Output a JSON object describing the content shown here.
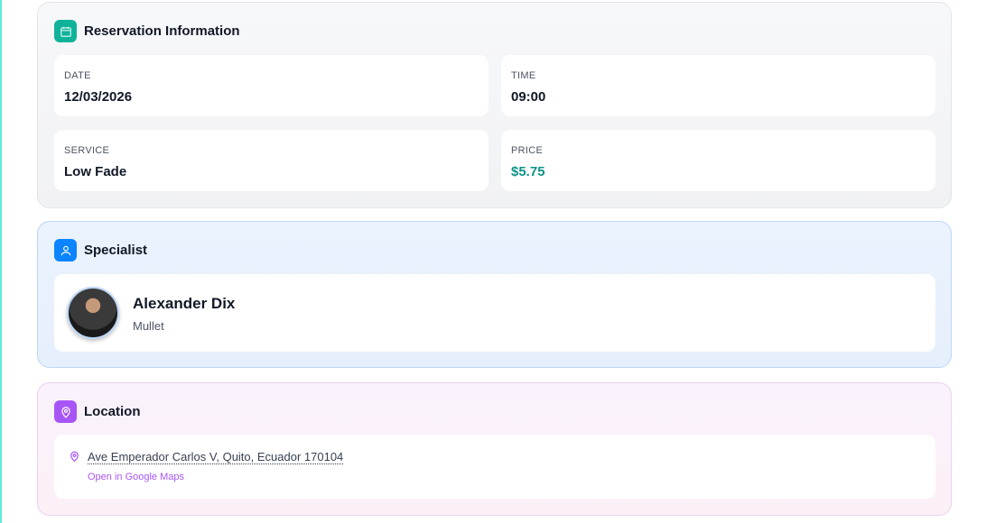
{
  "reservation": {
    "title": "Reservation Information",
    "icon": "calendar-icon",
    "accent": "#10b39a",
    "date": {
      "label": "DATE",
      "value": "12/03/2026"
    },
    "time": {
      "label": "TIME",
      "value": "09:00"
    },
    "service": {
      "label": "SERVICE",
      "value": "Low Fade"
    },
    "price": {
      "label": "PRICE",
      "value": "$5.75",
      "color": "#0d9488"
    }
  },
  "specialist": {
    "title": "Specialist",
    "icon": "user-icon",
    "accent": "#0a84ff",
    "name": "Alexander Dix",
    "specialty": "Mullet"
  },
  "location": {
    "title": "Location",
    "icon": "map-pin-icon",
    "accent": "#a855f7",
    "address": "Ave Emperador Carlos V, Quito, Ecuador 170104",
    "maps_link": "Open in Google Maps"
  }
}
